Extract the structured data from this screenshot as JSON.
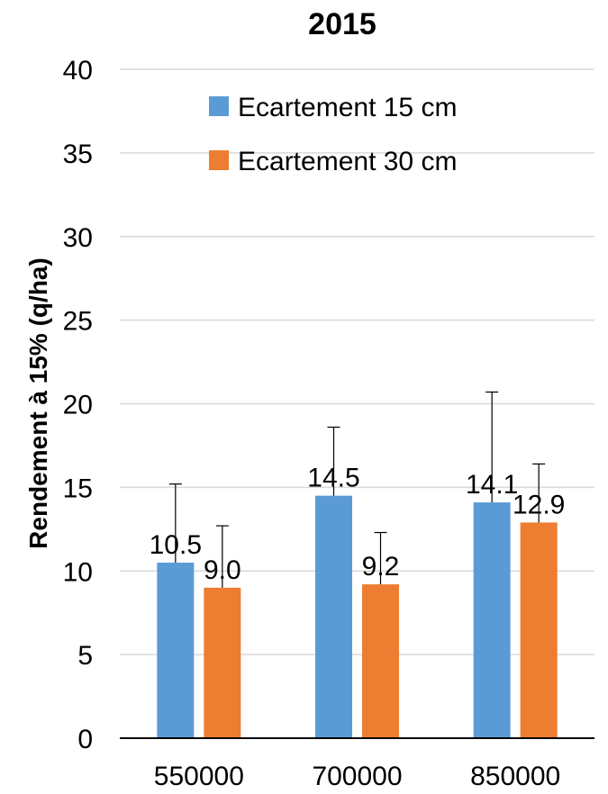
{
  "chart_data": {
    "type": "bar",
    "title": "2015",
    "xlabel": "",
    "ylabel": "Rendement à 15% (q/ha)",
    "ylim": [
      0,
      40
    ],
    "yticks": [
      0,
      5,
      10,
      15,
      20,
      25,
      30,
      35,
      40
    ],
    "grid": true,
    "legend_position": "top-center",
    "categories": [
      "550000",
      "700000",
      "850000"
    ],
    "series": [
      {
        "name": "Ecartement 15 cm",
        "color": "#5B9BD5",
        "values": [
          10.5,
          14.5,
          14.1
        ],
        "labels": [
          "10.5",
          "14.5",
          "14.1"
        ],
        "error_upper": [
          15.2,
          18.6,
          20.7
        ]
      },
      {
        "name": "Ecartement 30 cm",
        "color": "#ED7D31",
        "values": [
          9.0,
          9.2,
          12.9
        ],
        "labels": [
          "9.0",
          "9.2",
          "12.9"
        ],
        "error_upper": [
          12.7,
          12.3,
          16.4
        ]
      }
    ]
  }
}
